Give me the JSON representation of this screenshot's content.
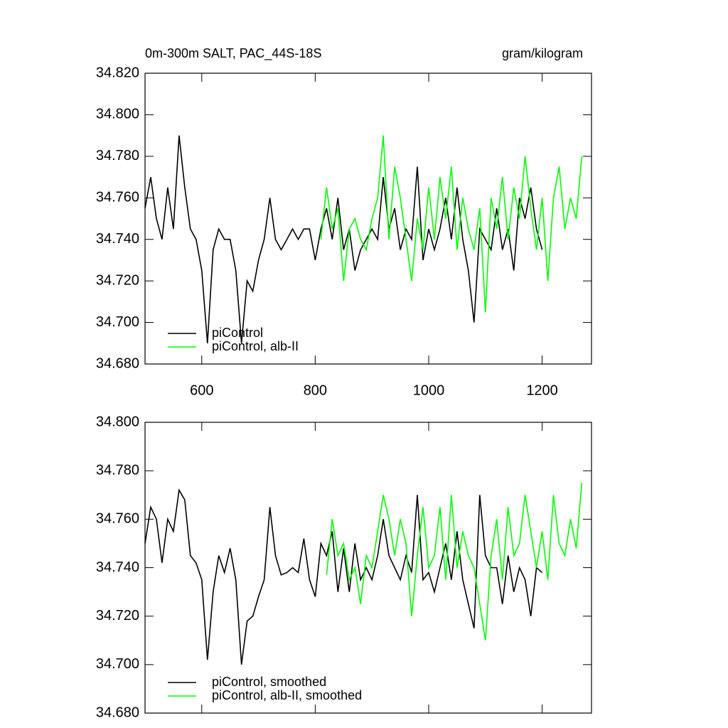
{
  "chart_data": [
    {
      "type": "line",
      "title": "0m-300m SALT, PAC_44S-18S",
      "units": "gram/kilogram",
      "xlim": [
        500,
        1287
      ],
      "xticks": [
        600,
        800,
        1000,
        1200
      ],
      "show_xtick_labels": true,
      "ylim": [
        34.68,
        34.82
      ],
      "yticks": [
        {
          "value": 34.68,
          "label": "34.680"
        },
        {
          "value": 34.7,
          "label": "34.700"
        },
        {
          "value": 34.72,
          "label": "34.720"
        },
        {
          "value": 34.74,
          "label": "34.740"
        },
        {
          "value": 34.76,
          "label": "34.760"
        },
        {
          "value": 34.78,
          "label": "34.780"
        },
        {
          "value": 34.8,
          "label": "34.800"
        },
        {
          "value": 34.82,
          "label": "34.820"
        }
      ],
      "legend": "lower left",
      "series": [
        {
          "name": "piControl",
          "color": "#000000",
          "x": [
            500,
            510,
            520,
            530,
            540,
            550,
            560,
            570,
            580,
            590,
            600,
            610,
            620,
            630,
            640,
            650,
            660,
            670,
            680,
            690,
            700,
            710,
            720,
            730,
            740,
            750,
            760,
            770,
            780,
            790,
            800,
            810,
            820,
            830,
            840,
            850,
            860,
            870,
            880,
            890,
            900,
            910,
            920,
            930,
            940,
            950,
            960,
            970,
            980,
            990,
            1000,
            1010,
            1020,
            1030,
            1040,
            1050,
            1060,
            1070,
            1080,
            1090,
            1100,
            1110,
            1120,
            1130,
            1140,
            1150,
            1160,
            1170,
            1180,
            1190,
            1200
          ],
          "values": [
            34.755,
            34.77,
            34.75,
            34.74,
            34.765,
            34.745,
            34.79,
            34.765,
            34.745,
            34.74,
            34.725,
            34.69,
            34.735,
            34.745,
            34.74,
            34.74,
            34.725,
            34.69,
            34.72,
            34.715,
            34.73,
            34.74,
            34.76,
            34.74,
            34.735,
            34.74,
            34.745,
            34.74,
            34.745,
            34.745,
            34.73,
            34.745,
            34.755,
            34.74,
            34.76,
            34.735,
            34.745,
            34.725,
            34.735,
            34.74,
            34.745,
            34.74,
            34.77,
            34.745,
            34.755,
            34.735,
            34.745,
            34.74,
            34.775,
            34.73,
            34.745,
            34.735,
            34.745,
            34.76,
            34.74,
            34.765,
            34.74,
            34.725,
            34.7,
            34.745,
            34.74,
            34.735,
            34.755,
            34.735,
            34.745,
            34.725,
            34.76,
            34.75,
            34.765,
            34.745,
            34.735
          ]
        },
        {
          "name": "piControl, alb-II",
          "color": "#00ff00",
          "x": [
            810,
            820,
            830,
            840,
            850,
            860,
            870,
            880,
            890,
            900,
            910,
            920,
            930,
            940,
            950,
            960,
            970,
            980,
            990,
            1000,
            1010,
            1020,
            1030,
            1040,
            1050,
            1060,
            1070,
            1080,
            1090,
            1100,
            1110,
            1120,
            1130,
            1140,
            1150,
            1160,
            1170,
            1180,
            1190,
            1200,
            1210,
            1220,
            1230,
            1240,
            1250,
            1260,
            1270
          ],
          "values": [
            34.74,
            34.765,
            34.745,
            34.755,
            34.72,
            34.745,
            34.75,
            34.74,
            34.735,
            34.75,
            34.76,
            34.79,
            34.74,
            34.775,
            34.76,
            34.74,
            34.72,
            34.75,
            34.735,
            34.765,
            34.74,
            34.77,
            34.75,
            34.775,
            34.735,
            34.76,
            34.745,
            34.735,
            34.755,
            34.705,
            34.76,
            34.745,
            34.77,
            34.74,
            34.765,
            34.75,
            34.78,
            34.755,
            34.735,
            34.76,
            34.72,
            34.76,
            34.775,
            34.745,
            34.76,
            34.75,
            34.78
          ]
        }
      ]
    },
    {
      "type": "line",
      "xlim": [
        500,
        1287
      ],
      "xticks": [
        600,
        800,
        1000,
        1200
      ],
      "show_xtick_labels": false,
      "ylim": [
        34.68,
        34.8
      ],
      "yticks": [
        {
          "value": 34.68,
          "label": "34.680"
        },
        {
          "value": 34.7,
          "label": "34.700"
        },
        {
          "value": 34.72,
          "label": "34.720"
        },
        {
          "value": 34.74,
          "label": "34.740"
        },
        {
          "value": 34.76,
          "label": "34.760"
        },
        {
          "value": 34.78,
          "label": "34.780"
        },
        {
          "value": 34.8,
          "label": "34.800"
        }
      ],
      "legend": "lower left",
      "series": [
        {
          "name": "piControl, smoothed",
          "color": "#000000",
          "x": [
            500,
            510,
            520,
            530,
            540,
            550,
            560,
            570,
            580,
            590,
            600,
            610,
            620,
            630,
            640,
            650,
            660,
            670,
            680,
            690,
            700,
            710,
            720,
            730,
            740,
            750,
            760,
            770,
            780,
            790,
            800,
            810,
            820,
            830,
            840,
            850,
            860,
            870,
            880,
            890,
            900,
            910,
            920,
            930,
            940,
            950,
            960,
            970,
            980,
            990,
            1000,
            1010,
            1020,
            1030,
            1040,
            1050,
            1060,
            1070,
            1080,
            1090,
            1100,
            1110,
            1120,
            1130,
            1140,
            1150,
            1160,
            1170,
            1180,
            1190,
            1200
          ],
          "values": [
            34.75,
            34.765,
            34.76,
            34.742,
            34.76,
            34.755,
            34.772,
            34.768,
            34.745,
            34.742,
            34.735,
            34.702,
            34.73,
            34.745,
            34.738,
            34.748,
            34.735,
            34.7,
            34.718,
            34.72,
            34.728,
            34.735,
            34.765,
            34.745,
            34.737,
            34.738,
            34.74,
            34.738,
            34.752,
            34.735,
            34.728,
            34.75,
            34.745,
            34.755,
            34.73,
            34.748,
            34.73,
            34.75,
            34.735,
            34.74,
            34.735,
            34.745,
            34.76,
            34.745,
            34.74,
            34.735,
            34.745,
            34.738,
            34.77,
            34.735,
            34.738,
            34.73,
            34.74,
            34.75,
            34.735,
            34.755,
            34.735,
            34.725,
            34.715,
            34.77,
            34.745,
            34.74,
            34.74,
            34.725,
            34.745,
            34.73,
            34.74,
            34.735,
            34.72,
            34.74,
            34.738
          ]
        },
        {
          "name": "piControl, alb-II, smoothed",
          "color": "#00ff00",
          "x": [
            820,
            830,
            840,
            850,
            860,
            870,
            880,
            890,
            900,
            910,
            920,
            930,
            940,
            950,
            960,
            970,
            980,
            990,
            1000,
            1010,
            1020,
            1030,
            1040,
            1050,
            1060,
            1070,
            1080,
            1090,
            1100,
            1110,
            1120,
            1130,
            1140,
            1150,
            1160,
            1170,
            1180,
            1190,
            1200,
            1210,
            1220,
            1230,
            1240,
            1250,
            1260,
            1270
          ],
          "values": [
            34.737,
            34.76,
            34.745,
            34.75,
            34.735,
            34.74,
            34.725,
            34.745,
            34.74,
            34.755,
            34.77,
            34.76,
            34.745,
            34.76,
            34.75,
            34.72,
            34.745,
            34.765,
            34.74,
            34.745,
            34.765,
            34.735,
            34.77,
            34.74,
            34.755,
            34.745,
            34.74,
            34.725,
            34.71,
            34.745,
            34.76,
            34.735,
            34.765,
            34.745,
            34.75,
            34.77,
            34.755,
            34.74,
            34.755,
            34.735,
            34.77,
            34.75,
            34.745,
            34.76,
            34.748,
            34.775
          ]
        }
      ]
    }
  ]
}
